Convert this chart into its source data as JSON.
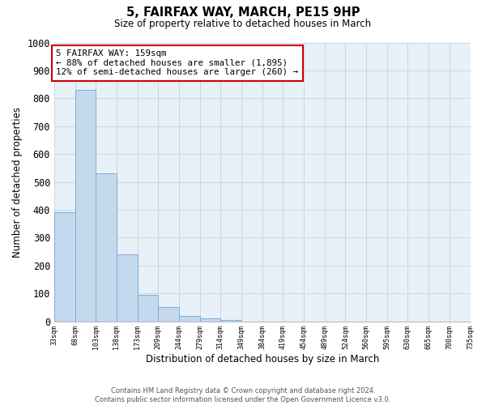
{
  "title": "5, FAIRFAX WAY, MARCH, PE15 9HP",
  "subtitle": "Size of property relative to detached houses in March",
  "xlabel": "Distribution of detached houses by size in March",
  "ylabel": "Number of detached properties",
  "bar_values": [
    390,
    830,
    530,
    240,
    95,
    50,
    20,
    10,
    5,
    0,
    0,
    0,
    0,
    0,
    0,
    0,
    0,
    0,
    0,
    0
  ],
  "x_labels": [
    "33sqm",
    "68sqm",
    "103sqm",
    "138sqm",
    "173sqm",
    "209sqm",
    "244sqm",
    "279sqm",
    "314sqm",
    "349sqm",
    "384sqm",
    "419sqm",
    "454sqm",
    "489sqm",
    "524sqm",
    "560sqm",
    "595sqm",
    "630sqm",
    "665sqm",
    "700sqm",
    "735sqm"
  ],
  "bar_color": "#c5d9ee",
  "bar_edge_color": "#7bafd4",
  "grid_color": "#c8d8e8",
  "background_color": "#e8f0f8",
  "annotation_text_line1": "5 FAIRFAX WAY: 159sqm",
  "annotation_text_line2": "← 88% of detached houses are smaller (1,895)",
  "annotation_text_line3": "12% of semi-detached houses are larger (260) →",
  "annotation_box_color": "#ffffff",
  "annotation_border_color": "#cc0000",
  "ylim": [
    0,
    1000
  ],
  "yticks": [
    0,
    100,
    200,
    300,
    400,
    500,
    600,
    700,
    800,
    900,
    1000
  ],
  "footer_line1": "Contains HM Land Registry data © Crown copyright and database right 2024.",
  "footer_line2": "Contains public sector information licensed under the Open Government Licence v3.0.",
  "property_bar_index": 3,
  "font_family": "DejaVu Sans Mono"
}
